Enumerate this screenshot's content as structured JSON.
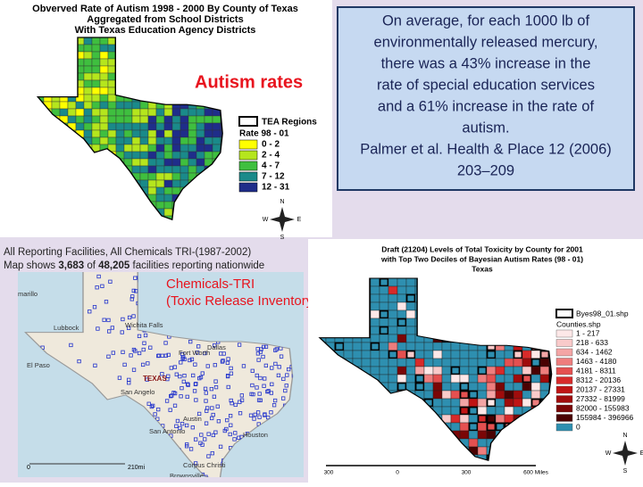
{
  "autism_map": {
    "title_lines": [
      "Obverved Rate of Autism 1998 - 2000 By County of Texas",
      "Aggregated from School Districts",
      "With Texas Education Agency Districts"
    ],
    "overlay_label": "Autism rates",
    "legend": {
      "regions": "TEA Regions",
      "title": "Rate 98 - 01",
      "items": [
        {
          "label": "0 - 2",
          "color": "#ffff00"
        },
        {
          "label": "2 - 4",
          "color": "#b5e61d"
        },
        {
          "label": "4 - 7",
          "color": "#3fbf3f"
        },
        {
          "label": "7 - 12",
          "color": "#1a8a8a"
        },
        {
          "label": "12 - 31",
          "color": "#1f2d8a"
        }
      ]
    },
    "compass": {
      "n": "N",
      "e": "E",
      "s": "S",
      "w": "W"
    }
  },
  "quote_box": {
    "lines": [
      "On average, for each 1000 lb of",
      "environmentally released mercury,",
      "there was a 43% increase in the",
      "rate of special education services",
      "and a 61% increase in the rate of",
      "autism.",
      "Palmer et al. Health & Place 12 (2006)",
      "203–209"
    ]
  },
  "tri_map": {
    "header_line1": "All Reporting Facilities, All Chemicals TRI-(1987-2002)",
    "header_line2": [
      "Map shows ",
      "3,683",
      " of ",
      "48,205",
      " facilities reporting nationwide"
    ],
    "overlay_lines": [
      "Chemicals-TRI",
      "(Toxic Release Inventory)"
    ],
    "places": [
      "marillo",
      "Lubbock",
      "Wichita Falls",
      "Dallas",
      "Fort Worth",
      "San Angelo",
      "TEXAS",
      "Austin",
      "San Antonio",
      "Houston",
      "Corpus Christi",
      "Brownsville",
      "El Paso"
    ],
    "scale": [
      "0",
      "210mi"
    ]
  },
  "toxicity_map": {
    "title_lines": [
      "Draft (21204) Levels of Total Toxicity by County for 2001",
      "with Top Two Deciles of Bayesian Autism Rates (98 - 01)",
      "Texas"
    ],
    "legend": {
      "outline": "Byes98_01.shp",
      "title": "Counties.shp",
      "items": [
        {
          "label": "1 - 217",
          "color": "#fde8e8"
        },
        {
          "label": "218 - 633",
          "color": "#f9caca"
        },
        {
          "label": "634 - 1462",
          "color": "#f4a5a5"
        },
        {
          "label": "1463 - 4180",
          "color": "#ee7d7d"
        },
        {
          "label": "4181 - 8311",
          "color": "#e55050"
        },
        {
          "label": "8312 - 20136",
          "color": "#d82a2a"
        },
        {
          "label": "20137 - 27331",
          "color": "#c01414"
        },
        {
          "label": "27332 - 81999",
          "color": "#a00c0c"
        },
        {
          "label": "82000 - 155983",
          "color": "#7a0606"
        },
        {
          "label": "155984 - 396966",
          "color": "#4a0202"
        },
        {
          "label": "0",
          "color": "#2e8fb0"
        }
      ]
    },
    "scale": [
      "300",
      "0",
      "300",
      "600 Miles"
    ],
    "compass": {
      "n": "N",
      "e": "E",
      "s": "S",
      "w": "W"
    }
  }
}
